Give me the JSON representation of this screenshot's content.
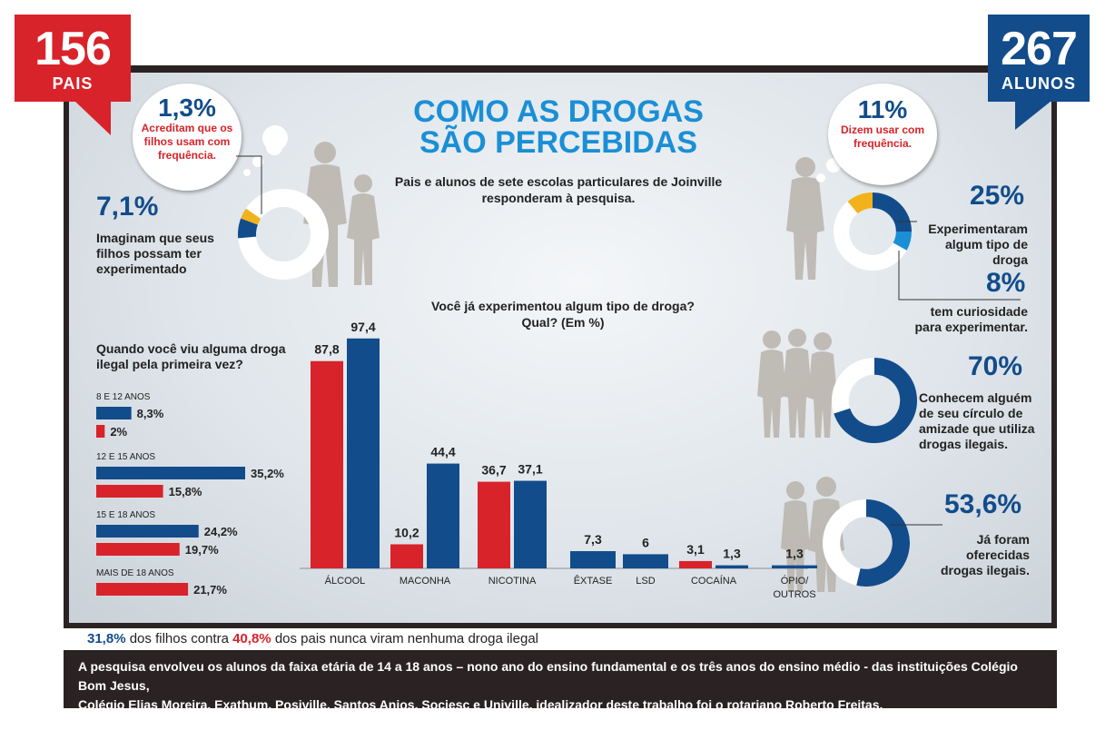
{
  "badges": {
    "pais": {
      "number": "156",
      "label": "PAIS"
    },
    "alunos": {
      "number": "267",
      "label": "ALUNOS"
    }
  },
  "title": {
    "line1": "COMO AS DROGAS",
    "line2": "SÃO PERCEBIDAS"
  },
  "subtitle": {
    "line1": "Pais e alunos de sete escolas particulares de Joinville",
    "line2": "responderam à pesquisa."
  },
  "parents": {
    "bubble_pct": "1,3%",
    "bubble_text": {
      "line1": "Acreditam que os",
      "line2": "filhos usam com",
      "line3": "frequência."
    },
    "imagine_pct": "7,1%",
    "imagine_text": {
      "line1": "Imaginam que seus",
      "line2": "filhos possam ter",
      "line3": "experimentado"
    },
    "donut_values": {
      "use_frequently": 1.3,
      "may_have_tried": 7.1
    }
  },
  "students": {
    "bubble_pct": "11%",
    "bubble_text": {
      "line1": "Dizem usar com",
      "line2": "frequência."
    },
    "tried_pct": "25%",
    "tried_text": {
      "line1": "Experimentaram",
      "line2": "algum tipo de droga"
    },
    "curious_pct": "8%",
    "curious_text": {
      "line1": "tem curiosidade",
      "line2": "para experimentar."
    },
    "know_pct": "70%",
    "know_text": {
      "line1": "Conhecem alguém",
      "line2": "de seu círculo de",
      "line3": "amizade que utiliza",
      "line4": "drogas ilegais."
    },
    "offered_pct": "53,6%",
    "offered_text": {
      "line1": "Já foram oferecidas",
      "line2": "drogas ilegais."
    },
    "donut_values": {
      "use_frequently": 11,
      "tried": 25,
      "curious": 8,
      "know": 70,
      "offered": 53.6
    }
  },
  "colors": {
    "red": "#d8232a",
    "blue": "#124c8b",
    "yellow": "#f2b21b",
    "lightblue": "#1a8fd6",
    "dark": "#2b2323"
  },
  "chart_data": [
    {
      "type": "bar",
      "title": "Você já experimentou algum tipo de droga? Qual? (Em %)",
      "title_line1": "Você já experimentou algum tipo de droga?",
      "title_line2": "Qual? (Em %)",
      "categories": [
        "ÁLCOOL",
        "MACONHA",
        "NICOTINA",
        "ÊXTASE",
        "LSD",
        "COCAÍNA",
        "ÓPIO/ OUTROS"
      ],
      "category_lines": [
        [
          "ÁLCOOL"
        ],
        [
          "MACONHA"
        ],
        [
          "NICOTINA"
        ],
        [
          "ÊXTASE"
        ],
        [
          "LSD"
        ],
        [
          "COCAÍNA"
        ],
        [
          "ÓPIO/",
          "OUTROS"
        ]
      ],
      "series": [
        {
          "name": "Pais",
          "color": "#d8232a",
          "values": [
            87.8,
            10.2,
            36.7,
            null,
            null,
            3.1,
            null
          ]
        },
        {
          "name": "Alunos",
          "color": "#124c8b",
          "values": [
            97.4,
            44.4,
            37.1,
            7.3,
            6,
            1.3,
            1.3
          ]
        }
      ],
      "value_labels": [
        [
          "87,8",
          "10,2",
          "36,7",
          "",
          "",
          "3,1",
          ""
        ],
        [
          "97,4",
          "44,4",
          "37,1",
          "7,3",
          "6",
          "1,3",
          "1,3"
        ]
      ],
      "ylim": [
        0,
        100
      ],
      "xlabel": "",
      "ylabel": ""
    },
    {
      "type": "bar",
      "orientation": "horizontal",
      "title": "Quando você viu alguma droga ilegal pela primeira vez?",
      "title_line1": "Quando você viu alguma droga",
      "title_line2": "ilegal pela primeira vez?",
      "categories": [
        "8 E 12 ANOS",
        "12 E 15 ANOS",
        "15 E 18 ANOS",
        "MAIS DE 18 ANOS"
      ],
      "series": [
        {
          "name": "Alunos",
          "color": "#124c8b",
          "values": [
            8.3,
            35.2,
            24.2,
            null
          ]
        },
        {
          "name": "Pais",
          "color": "#d8232a",
          "values": [
            2,
            15.8,
            19.7,
            21.7
          ]
        }
      ],
      "value_labels": [
        [
          "8,3%",
          "35,2%",
          "24,2%",
          ""
        ],
        [
          "2%",
          "15,8%",
          "19,7%",
          "21,7%"
        ]
      ],
      "xlim": [
        0,
        40
      ]
    }
  ],
  "footer": {
    "summary": {
      "pct1": "31,8%",
      "text1": " dos filhos contra ",
      "pct2": "40,8%",
      "text2": " dos pais nunca viram nenhuma droga ilegal"
    },
    "note_line1": "A pesquisa envolveu os alunos da faixa etária de 14 a 18 anos – nono ano do ensino fundamental e os três anos do ensino médio - das instituições Colégio Bom Jesus,",
    "note_line2": "Colégio Elias Moreira, Exathum, Posiville, Santos Anjos, Sociesc e Univille.  idealizador deste trabalho foi o rotariano Roberto Freitas."
  }
}
